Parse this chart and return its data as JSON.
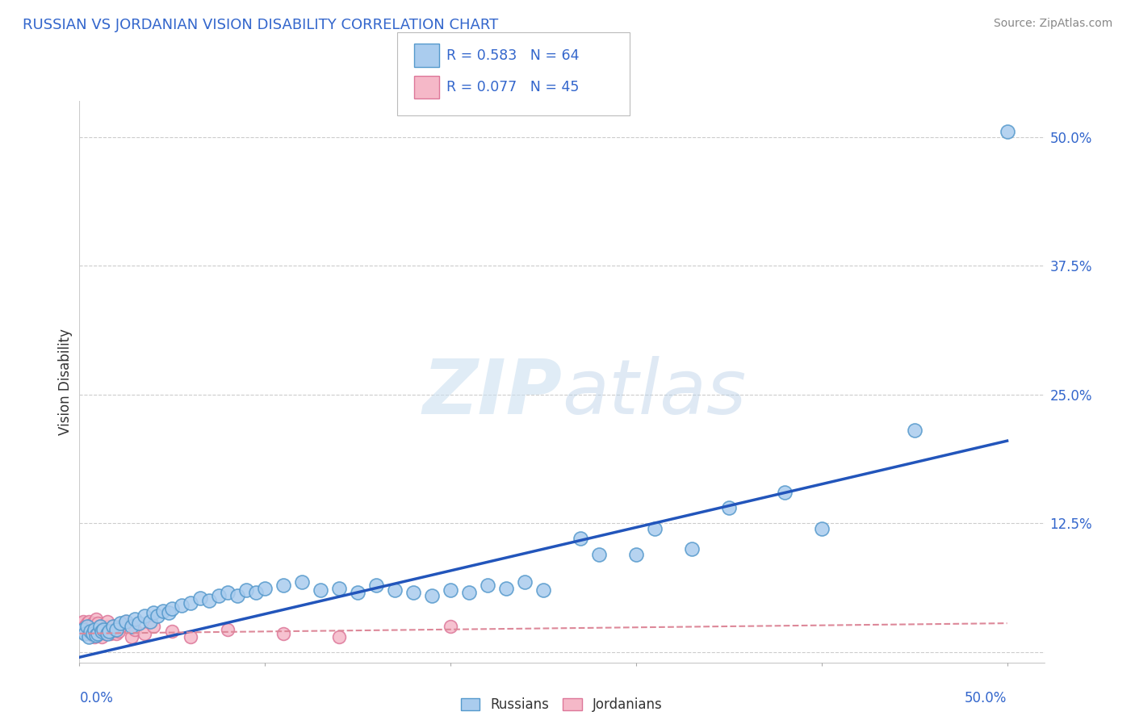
{
  "title": "RUSSIAN VS JORDANIAN VISION DISABILITY CORRELATION CHART",
  "source": "Source: ZipAtlas.com",
  "ylabel": "Vision Disability",
  "xlim": [
    0.0,
    0.52
  ],
  "ylim": [
    -0.01,
    0.535
  ],
  "yticks": [
    0.0,
    0.125,
    0.25,
    0.375,
    0.5
  ],
  "ytick_labels": [
    "",
    "12.5%",
    "25.0%",
    "37.5%",
    "50.0%"
  ],
  "russian_color": "#aaccee",
  "russian_edge_color": "#5599cc",
  "jordanian_color": "#f5b8c8",
  "jordanian_edge_color": "#dd7799",
  "trend_russian_color": "#2255bb",
  "trend_jordanian_color": "#dd8899",
  "R_russian": 0.583,
  "N_russian": 64,
  "R_jordanian": 0.077,
  "N_jordanian": 45,
  "trend_russian_start_x": 0.0,
  "trend_russian_start_y": -0.005,
  "trend_russian_end_x": 0.5,
  "trend_russian_end_y": 0.205,
  "trend_jordanian_start_x": 0.0,
  "trend_jordanian_start_y": 0.018,
  "trend_jordanian_end_x": 0.5,
  "trend_jordanian_end_y": 0.028,
  "russian_points": [
    [
      0.001,
      0.02
    ],
    [
      0.002,
      0.022
    ],
    [
      0.003,
      0.018
    ],
    [
      0.004,
      0.025
    ],
    [
      0.005,
      0.015
    ],
    [
      0.006,
      0.02
    ],
    [
      0.007,
      0.018
    ],
    [
      0.008,
      0.022
    ],
    [
      0.009,
      0.016
    ],
    [
      0.01,
      0.018
    ],
    [
      0.011,
      0.025
    ],
    [
      0.012,
      0.02
    ],
    [
      0.013,
      0.022
    ],
    [
      0.015,
      0.018
    ],
    [
      0.016,
      0.02
    ],
    [
      0.018,
      0.025
    ],
    [
      0.02,
      0.022
    ],
    [
      0.022,
      0.028
    ],
    [
      0.025,
      0.03
    ],
    [
      0.028,
      0.025
    ],
    [
      0.03,
      0.032
    ],
    [
      0.032,
      0.028
    ],
    [
      0.035,
      0.035
    ],
    [
      0.038,
      0.03
    ],
    [
      0.04,
      0.038
    ],
    [
      0.042,
      0.035
    ],
    [
      0.045,
      0.04
    ],
    [
      0.048,
      0.038
    ],
    [
      0.05,
      0.042
    ],
    [
      0.055,
      0.045
    ],
    [
      0.06,
      0.048
    ],
    [
      0.065,
      0.052
    ],
    [
      0.07,
      0.05
    ],
    [
      0.075,
      0.055
    ],
    [
      0.08,
      0.058
    ],
    [
      0.085,
      0.055
    ],
    [
      0.09,
      0.06
    ],
    [
      0.095,
      0.058
    ],
    [
      0.1,
      0.062
    ],
    [
      0.11,
      0.065
    ],
    [
      0.12,
      0.068
    ],
    [
      0.13,
      0.06
    ],
    [
      0.14,
      0.062
    ],
    [
      0.15,
      0.058
    ],
    [
      0.16,
      0.065
    ],
    [
      0.17,
      0.06
    ],
    [
      0.18,
      0.058
    ],
    [
      0.19,
      0.055
    ],
    [
      0.2,
      0.06
    ],
    [
      0.21,
      0.058
    ],
    [
      0.22,
      0.065
    ],
    [
      0.23,
      0.062
    ],
    [
      0.24,
      0.068
    ],
    [
      0.25,
      0.06
    ],
    [
      0.27,
      0.11
    ],
    [
      0.28,
      0.095
    ],
    [
      0.3,
      0.095
    ],
    [
      0.31,
      0.12
    ],
    [
      0.33,
      0.1
    ],
    [
      0.35,
      0.14
    ],
    [
      0.38,
      0.155
    ],
    [
      0.4,
      0.12
    ],
    [
      0.45,
      0.215
    ],
    [
      0.5,
      0.505
    ]
  ],
  "jordanian_points": [
    [
      0.001,
      0.028
    ],
    [
      0.002,
      0.022
    ],
    [
      0.002,
      0.03
    ],
    [
      0.003,
      0.025
    ],
    [
      0.003,
      0.018
    ],
    [
      0.004,
      0.028
    ],
    [
      0.004,
      0.022
    ],
    [
      0.005,
      0.02
    ],
    [
      0.005,
      0.03
    ],
    [
      0.006,
      0.025
    ],
    [
      0.006,
      0.018
    ],
    [
      0.007,
      0.022
    ],
    [
      0.007,
      0.028
    ],
    [
      0.008,
      0.02
    ],
    [
      0.008,
      0.015
    ],
    [
      0.009,
      0.025
    ],
    [
      0.009,
      0.032
    ],
    [
      0.01,
      0.018
    ],
    [
      0.01,
      0.028
    ],
    [
      0.011,
      0.022
    ],
    [
      0.011,
      0.025
    ],
    [
      0.012,
      0.02
    ],
    [
      0.012,
      0.015
    ],
    [
      0.013,
      0.022
    ],
    [
      0.014,
      0.018
    ],
    [
      0.015,
      0.025
    ],
    [
      0.015,
      0.03
    ],
    [
      0.016,
      0.02
    ],
    [
      0.017,
      0.018
    ],
    [
      0.018,
      0.025
    ],
    [
      0.019,
      0.022
    ],
    [
      0.02,
      0.018
    ],
    [
      0.021,
      0.02
    ],
    [
      0.022,
      0.025
    ],
    [
      0.025,
      0.03
    ],
    [
      0.028,
      0.015
    ],
    [
      0.03,
      0.022
    ],
    [
      0.035,
      0.018
    ],
    [
      0.04,
      0.025
    ],
    [
      0.05,
      0.02
    ],
    [
      0.06,
      0.015
    ],
    [
      0.08,
      0.022
    ],
    [
      0.11,
      0.018
    ],
    [
      0.14,
      0.015
    ],
    [
      0.2,
      0.025
    ]
  ]
}
